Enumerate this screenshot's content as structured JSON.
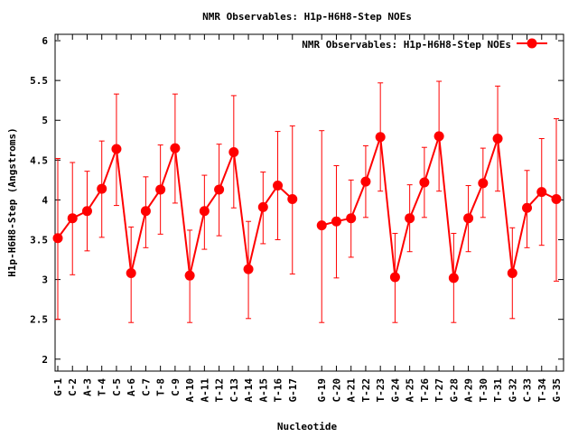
{
  "chart_data": {
    "type": "line",
    "title": "NMR Observables: H1p-H6H8-Step NOEs",
    "xlabel": "Nucleotide",
    "ylabel": "H1p-H6H8-Step (Angstroms)",
    "ylim": [
      1.85,
      6.08
    ],
    "yticks": [
      2,
      2.5,
      3,
      3.5,
      4,
      4.5,
      5,
      5.5,
      6
    ],
    "ytick_labels": [
      "2",
      "2.5",
      "3",
      "3.5",
      "4",
      "4.5",
      "5",
      "5.5",
      "6"
    ],
    "grid": false,
    "legend_position": "top-right",
    "color": "#ff0000",
    "categories": [
      "G-1",
      "C-2",
      "A-3",
      "T-4",
      "C-5",
      "A-6",
      "C-7",
      "T-8",
      "C-9",
      "A-10",
      "A-11",
      "T-12",
      "C-13",
      "A-14",
      "A-15",
      "T-16",
      "G-17",
      "",
      "G-19",
      "C-20",
      "A-21",
      "T-22",
      "T-23",
      "G-24",
      "A-25",
      "T-26",
      "T-27",
      "G-28",
      "A-29",
      "T-30",
      "T-31",
      "G-32",
      "C-33",
      "T-34",
      "G-35"
    ],
    "series": [
      {
        "name": "NMR Observables: H1p-H6H8-Step NOEs",
        "values": [
          3.52,
          3.77,
          3.86,
          4.14,
          4.64,
          3.08,
          3.86,
          4.13,
          4.65,
          3.05,
          3.86,
          4.13,
          4.6,
          3.13,
          3.91,
          4.18,
          4.01,
          null,
          3.68,
          3.73,
          3.77,
          4.23,
          4.79,
          3.03,
          3.77,
          4.22,
          4.8,
          3.02,
          3.77,
          4.21,
          4.77,
          3.08,
          3.9,
          4.1,
          4.01
        ],
        "err_low": [
          2.5,
          3.06,
          3.36,
          3.53,
          3.93,
          2.46,
          3.4,
          3.57,
          3.96,
          2.46,
          3.38,
          3.55,
          3.9,
          2.51,
          3.45,
          3.5,
          3.07,
          null,
          2.46,
          3.02,
          3.28,
          3.78,
          4.11,
          2.46,
          3.35,
          3.78,
          4.11,
          2.46,
          3.35,
          3.78,
          4.11,
          2.51,
          3.4,
          3.43,
          2.98
        ],
        "err_high": [
          4.52,
          4.47,
          4.36,
          4.74,
          5.33,
          3.66,
          4.29,
          4.69,
          5.33,
          3.62,
          4.31,
          4.7,
          5.31,
          3.73,
          4.35,
          4.86,
          4.93,
          null,
          4.87,
          4.43,
          4.25,
          4.68,
          5.47,
          3.58,
          4.19,
          4.66,
          5.49,
          3.58,
          4.18,
          4.65,
          5.43,
          3.65,
          4.37,
          4.77,
          5.02
        ]
      }
    ]
  }
}
